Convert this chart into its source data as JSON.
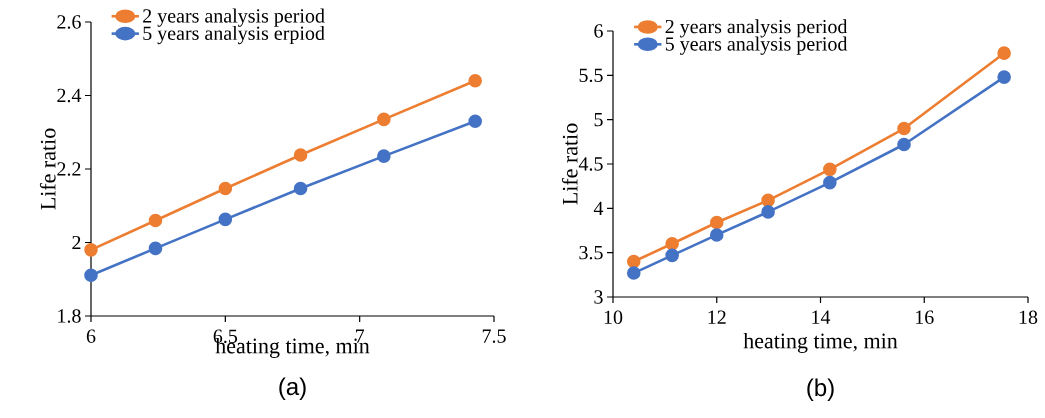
{
  "chart_data": [
    {
      "type": "line",
      "xlabel": "heating time, min",
      "ylabel": "Life ratio",
      "annotations": [
        "(a)"
      ],
      "xlim": [
        6,
        7.5
      ],
      "xticks": [
        6,
        6.5,
        7,
        7.5
      ],
      "ylim": [
        1.8,
        2.6
      ],
      "yticks": [
        1.8,
        2,
        2.2,
        2.4,
        2.6
      ],
      "legend": "top left",
      "marker": "circle",
      "line_style": "solid",
      "series": [
        {
          "name": "2 years analysis period",
          "color": "#ed7d31",
          "x": [
            6,
            6.24,
            6.5,
            6.78,
            7.09,
            7.43
          ],
          "values": [
            1.98,
            2.06,
            2.147,
            2.238,
            2.335,
            2.44
          ]
        },
        {
          "name": "5 years analysis erpiod",
          "color": "#4472c4",
          "x": [
            6,
            6.24,
            6.5,
            6.78,
            7.09,
            7.43
          ],
          "values": [
            1.911,
            1.984,
            2.063,
            2.147,
            2.235,
            2.33
          ]
        }
      ]
    },
    {
      "type": "line",
      "xlabel": "heating time, min",
      "ylabel": "Life ratio",
      "annotations": [
        "(b)"
      ],
      "xlim": [
        10,
        18
      ],
      "xticks": [
        10,
        12,
        14,
        16,
        18
      ],
      "ylim": [
        3,
        6
      ],
      "yticks": [
        3,
        3.5,
        4,
        4.5,
        5,
        5.5,
        6
      ],
      "legend": "top left",
      "marker": "circle",
      "line_style": "solid",
      "series": [
        {
          "name": "2 years analysis period",
          "color": "#ed7d31",
          "x": [
            10.4,
            11.14,
            12.0,
            12.99,
            14.18,
            15.61,
            17.54
          ],
          "values": [
            3.4,
            3.6,
            3.84,
            4.09,
            4.44,
            4.9,
            5.75
          ]
        },
        {
          "name": "5 years analysis period",
          "color": "#4472c4",
          "x": [
            10.4,
            11.14,
            12.0,
            12.99,
            14.18,
            15.61,
            17.54
          ],
          "values": [
            3.27,
            3.47,
            3.7,
            3.96,
            4.29,
            4.72,
            5.48
          ]
        }
      ]
    }
  ]
}
